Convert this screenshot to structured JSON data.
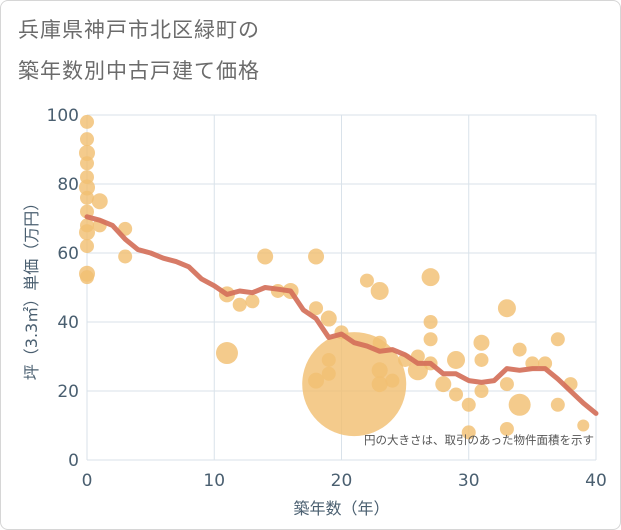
{
  "header": {
    "title_line1": "兵庫県神戸市北区緑町の",
    "title_line2": "築年数別中古戸建て価格"
  },
  "note": "円の大きさは、取引のあった物件面積を示す",
  "colors": {
    "bubble": "#f2c073",
    "line": "#d4705a",
    "grid": "#d9e2ea",
    "axis_text": "#4a5f70"
  },
  "chart_data": {
    "type": "scatter",
    "xlabel": "築年数（年）",
    "ylabel": "坪（3.3㎡）単価（万円）",
    "xlim": [
      0,
      40
    ],
    "ylim": [
      0,
      100
    ],
    "xticks": [
      0,
      10,
      20,
      30,
      40
    ],
    "yticks": [
      0,
      20,
      40,
      60,
      80,
      100
    ],
    "grid": true,
    "bubbles": [
      {
        "x": 0,
        "y": 98,
        "r": 7
      },
      {
        "x": 0,
        "y": 93,
        "r": 7
      },
      {
        "x": 0,
        "y": 89,
        "r": 8
      },
      {
        "x": 0,
        "y": 86,
        "r": 7
      },
      {
        "x": 0,
        "y": 82,
        "r": 7
      },
      {
        "x": 0,
        "y": 79,
        "r": 8
      },
      {
        "x": 0,
        "y": 76,
        "r": 7
      },
      {
        "x": 0,
        "y": 72,
        "r": 7
      },
      {
        "x": 0,
        "y": 68,
        "r": 7
      },
      {
        "x": 0,
        "y": 66,
        "r": 8
      },
      {
        "x": 0,
        "y": 62,
        "r": 7
      },
      {
        "x": 0,
        "y": 54,
        "r": 8
      },
      {
        "x": 0,
        "y": 53,
        "r": 7
      },
      {
        "x": 1,
        "y": 75,
        "r": 8
      },
      {
        "x": 1,
        "y": 68,
        "r": 7
      },
      {
        "x": 3,
        "y": 67,
        "r": 7
      },
      {
        "x": 3,
        "y": 59,
        "r": 7
      },
      {
        "x": 11,
        "y": 48,
        "r": 8
      },
      {
        "x": 11,
        "y": 31,
        "r": 11
      },
      {
        "x": 12,
        "y": 45,
        "r": 7
      },
      {
        "x": 13,
        "y": 46,
        "r": 7
      },
      {
        "x": 14,
        "y": 59,
        "r": 8
      },
      {
        "x": 15,
        "y": 49,
        "r": 7
      },
      {
        "x": 16,
        "y": 49,
        "r": 8
      },
      {
        "x": 18,
        "y": 59,
        "r": 8
      },
      {
        "x": 18,
        "y": 44,
        "r": 7
      },
      {
        "x": 18,
        "y": 23,
        "r": 8
      },
      {
        "x": 19,
        "y": 41,
        "r": 8
      },
      {
        "x": 19,
        "y": 29,
        "r": 7
      },
      {
        "x": 19,
        "y": 25,
        "r": 7
      },
      {
        "x": 20,
        "y": 37,
        "r": 7
      },
      {
        "x": 21,
        "y": 22,
        "r": 52
      },
      {
        "x": 22,
        "y": 52,
        "r": 7
      },
      {
        "x": 23,
        "y": 49,
        "r": 9
      },
      {
        "x": 23,
        "y": 34,
        "r": 7
      },
      {
        "x": 23,
        "y": 26,
        "r": 8
      },
      {
        "x": 23,
        "y": 22,
        "r": 8
      },
      {
        "x": 24,
        "y": 23,
        "r": 7
      },
      {
        "x": 25,
        "y": 29,
        "r": 7
      },
      {
        "x": 26,
        "y": 30,
        "r": 7
      },
      {
        "x": 26,
        "y": 26,
        "r": 10
      },
      {
        "x": 27,
        "y": 53,
        "r": 9
      },
      {
        "x": 27,
        "y": 40,
        "r": 7
      },
      {
        "x": 27,
        "y": 35,
        "r": 7
      },
      {
        "x": 27,
        "y": 28,
        "r": 7
      },
      {
        "x": 28,
        "y": 22,
        "r": 8
      },
      {
        "x": 29,
        "y": 29,
        "r": 9
      },
      {
        "x": 29,
        "y": 19,
        "r": 7
      },
      {
        "x": 30,
        "y": 16,
        "r": 7
      },
      {
        "x": 30,
        "y": 8,
        "r": 7
      },
      {
        "x": 31,
        "y": 34,
        "r": 8
      },
      {
        "x": 31,
        "y": 29,
        "r": 7
      },
      {
        "x": 31,
        "y": 20,
        "r": 7
      },
      {
        "x": 33,
        "y": 44,
        "r": 9
      },
      {
        "x": 33,
        "y": 22,
        "r": 7
      },
      {
        "x": 33,
        "y": 9,
        "r": 7
      },
      {
        "x": 34,
        "y": 32,
        "r": 7
      },
      {
        "x": 34,
        "y": 16,
        "r": 11
      },
      {
        "x": 35,
        "y": 28,
        "r": 7
      },
      {
        "x": 36,
        "y": 28,
        "r": 7
      },
      {
        "x": 37,
        "y": 35,
        "r": 7
      },
      {
        "x": 37,
        "y": 16,
        "r": 7
      },
      {
        "x": 38,
        "y": 22,
        "r": 7
      },
      {
        "x": 39,
        "y": 10,
        "r": 6
      }
    ],
    "trend": {
      "x": [
        0,
        1,
        2,
        3,
        4,
        5,
        6,
        7,
        8,
        9,
        10,
        11,
        12,
        13,
        14,
        15,
        16,
        17,
        18,
        19,
        20,
        21,
        22,
        23,
        24,
        25,
        26,
        27,
        28,
        29,
        30,
        31,
        32,
        33,
        34,
        35,
        36,
        37,
        38,
        39,
        40
      ],
      "y": [
        70.5,
        69.5,
        68,
        64,
        61,
        60,
        58.5,
        57.5,
        56,
        52.5,
        50.5,
        48,
        49,
        48.5,
        50,
        49.5,
        49,
        43.5,
        41,
        35.5,
        36.5,
        34,
        33,
        31.5,
        32,
        30.5,
        28,
        28,
        25,
        25,
        23,
        22.5,
        23,
        26.5,
        26,
        26.5,
        26.5,
        23.5,
        20,
        16.5,
        13.5
      ]
    }
  }
}
